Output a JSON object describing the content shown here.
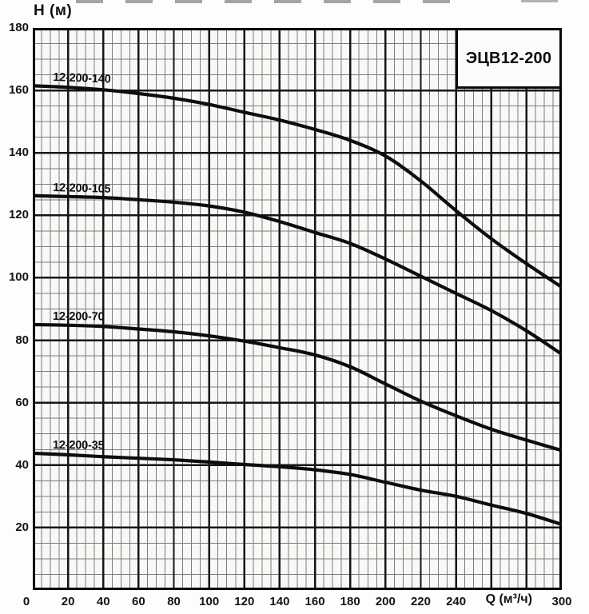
{
  "chart_data": {
    "type": "line",
    "title": "ЭЦВ12-200",
    "xlabel": "Q (м³/ч)",
    "ylabel": "H (м)",
    "xlim": [
      0,
      300
    ],
    "ylim": [
      0,
      180
    ],
    "grid": "on",
    "grid_minor_step": 5,
    "grid_major_step": 20,
    "legend_position": "labels-above-curves",
    "xlabel_position_q": 270,
    "y_ticks": [
      {
        "value": 180,
        "label": "180"
      },
      {
        "value": 160,
        "label": "160"
      },
      {
        "value": 140,
        "label": "140"
      },
      {
        "value": 120,
        "label": "120"
      },
      {
        "value": 100,
        "label": "100"
      },
      {
        "value": 80,
        "label": "80"
      },
      {
        "value": 60,
        "label": "60"
      },
      {
        "value": 40,
        "label": "40"
      },
      {
        "value": 20,
        "label": "20"
      }
    ],
    "x_ticks": [
      {
        "value": 0,
        "label": "0"
      },
      {
        "value": 20,
        "label": "20"
      },
      {
        "value": 40,
        "label": "40"
      },
      {
        "value": 60,
        "label": "60"
      },
      {
        "value": 80,
        "label": "80"
      },
      {
        "value": 100,
        "label": "100"
      },
      {
        "value": 120,
        "label": "120"
      },
      {
        "value": 140,
        "label": "140"
      },
      {
        "value": 160,
        "label": "160"
      },
      {
        "value": 180,
        "label": "180"
      },
      {
        "value": 200,
        "label": "200"
      },
      {
        "value": 220,
        "label": "220"
      },
      {
        "value": 240,
        "label": "240"
      },
      {
        "value": 300,
        "label": "300"
      }
    ],
    "x": [
      0,
      20,
      40,
      60,
      80,
      100,
      120,
      140,
      160,
      180,
      200,
      220,
      240,
      260,
      280,
      300
    ],
    "series": [
      {
        "name": "12-200-140",
        "values": [
          161.5,
          161,
          160.2,
          159,
          157.5,
          155.5,
          153,
          150.5,
          147.5,
          144,
          139,
          131,
          121.5,
          112.5,
          104.5,
          97
        ]
      },
      {
        "name": "12-200-105",
        "values": [
          126.3,
          126,
          125.7,
          125,
          124.2,
          123,
          121,
          118,
          114.5,
          111,
          106,
          100.5,
          95,
          89.5,
          83,
          75.5
        ]
      },
      {
        "name": "12-200-70",
        "values": [
          85,
          84.8,
          84.4,
          83.6,
          82.7,
          81.4,
          79.7,
          77.6,
          75.3,
          71.5,
          66,
          60.5,
          55.8,
          51.5,
          48,
          44.7
        ]
      },
      {
        "name": "12-200-35",
        "values": [
          43.8,
          43.3,
          42.7,
          42.2,
          41.7,
          41,
          40.2,
          39.5,
          38.5,
          37,
          34.5,
          32,
          30,
          27.2,
          24.5,
          21
        ]
      }
    ],
    "colors": {
      "curve": "#0d0d0d",
      "grid_minor": "#7c7c7c",
      "grid_major": "#161616",
      "border": "#050505"
    }
  }
}
